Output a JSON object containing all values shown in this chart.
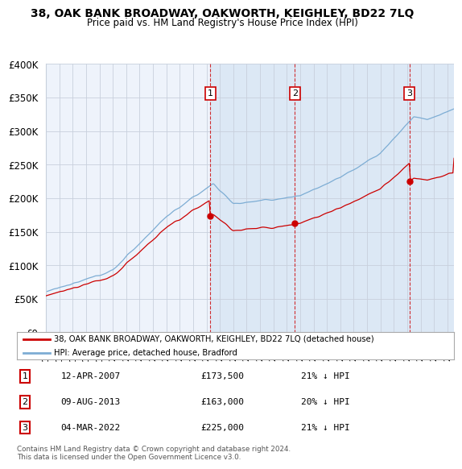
{
  "title": "38, OAK BANK BROADWAY, OAKWORTH, KEIGHLEY, BD22 7LQ",
  "subtitle": "Price paid vs. HM Land Registry's House Price Index (HPI)",
  "ylim": [
    0,
    400000
  ],
  "yticks": [
    0,
    50000,
    100000,
    150000,
    200000,
    250000,
    300000,
    350000,
    400000
  ],
  "ytick_labels": [
    "£0",
    "£50K",
    "£100K",
    "£150K",
    "£200K",
    "£250K",
    "£300K",
    "£350K",
    "£400K"
  ],
  "xlim_start": 1995.0,
  "xlim_end": 2025.5,
  "red_line_color": "#cc0000",
  "blue_line_color": "#7dadd4",
  "shade_color": "#dce8f5",
  "sale_dates": [
    2007.28,
    2013.6,
    2022.17
  ],
  "sale_prices": [
    173500,
    163000,
    225000
  ],
  "sale_labels": [
    "1",
    "2",
    "3"
  ],
  "legend_red": "38, OAK BANK BROADWAY, OAKWORTH, KEIGHLEY, BD22 7LQ (detached house)",
  "legend_blue": "HPI: Average price, detached house, Bradford",
  "table_data": [
    [
      "1",
      "12-APR-2007",
      "£173,500",
      "21% ↓ HPI"
    ],
    [
      "2",
      "09-AUG-2013",
      "£163,000",
      "20% ↓ HPI"
    ],
    [
      "3",
      "04-MAR-2022",
      "£225,000",
      "21% ↓ HPI"
    ]
  ],
  "footer": "Contains HM Land Registry data © Crown copyright and database right 2024.\nThis data is licensed under the Open Government Licence v3.0.",
  "background_color": "#ffffff",
  "plot_bg_color": "#eef3fb"
}
